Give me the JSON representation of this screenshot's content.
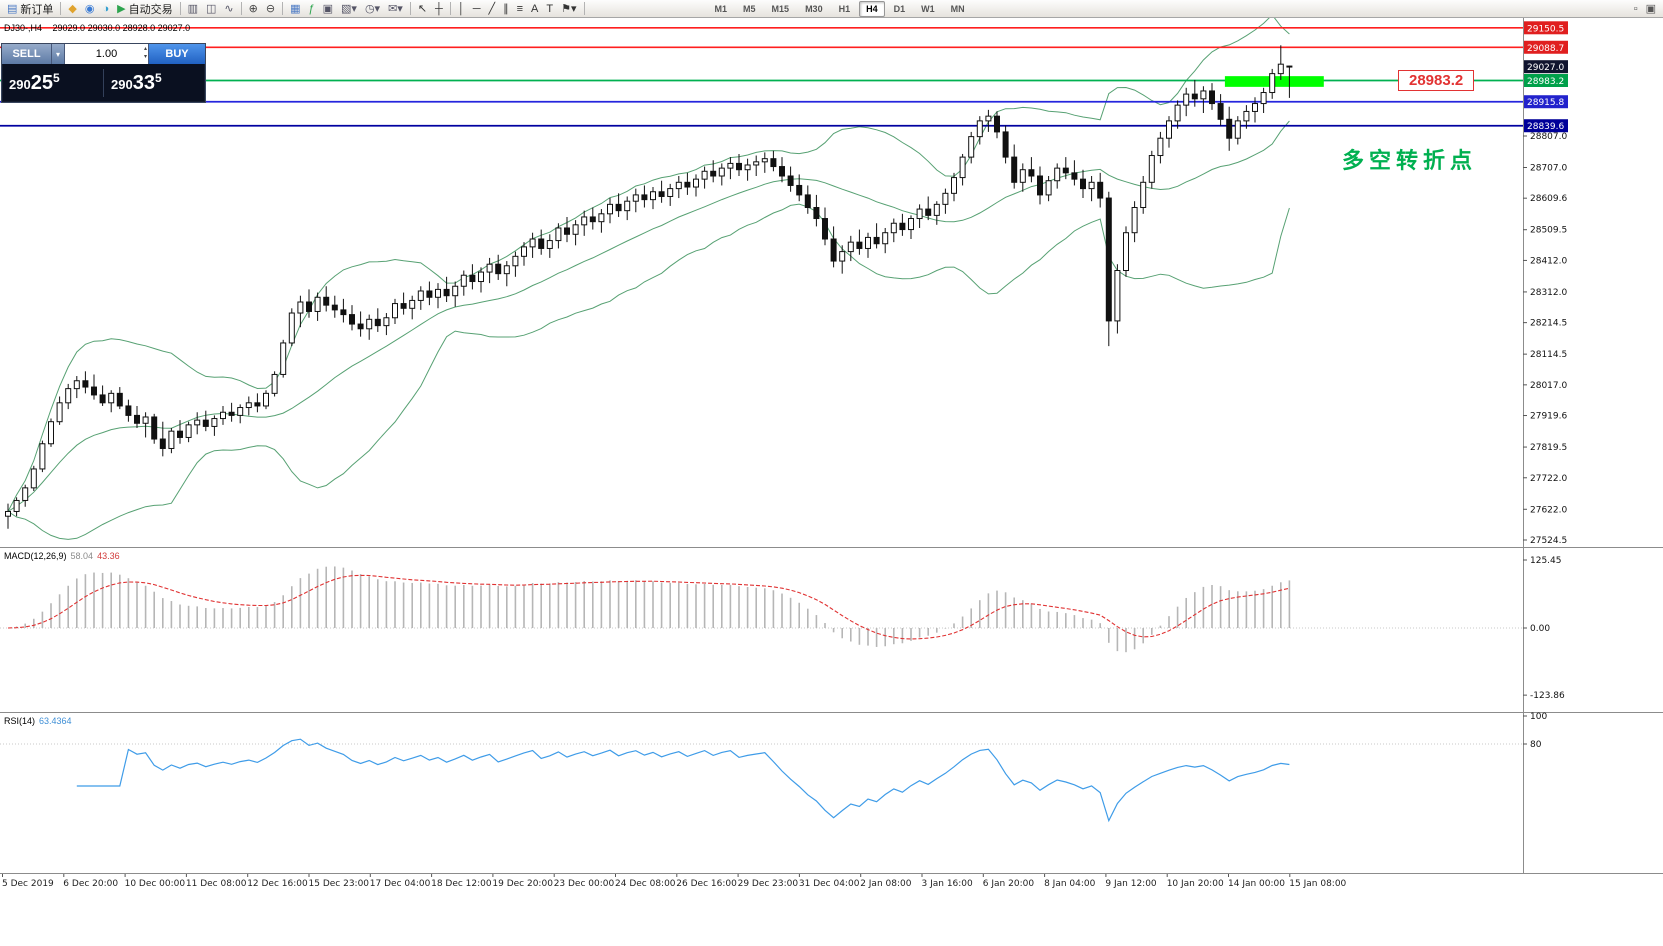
{
  "chart_header": {
    "symbol": "DJ30-,H4",
    "ohlc": "29029.0 29030.0 28928.0 29027.0"
  },
  "trade_panel": {
    "sell_label": "SELL",
    "buy_label": "BUY",
    "volume": "1.00",
    "sell_price": {
      "value": "29025.5",
      "prefix": "290",
      "big": "25",
      "sup": "5"
    },
    "buy_price": {
      "value": "29033.5",
      "prefix": "290",
      "big": "33",
      "sup": "5"
    }
  },
  "indicators": {
    "macd": {
      "name": "MACD(12,26,9)",
      "main": "58.04",
      "signal": "43.36"
    },
    "rsi": {
      "name": "RSI(14)",
      "value": "63.4364"
    }
  },
  "annotations": {
    "turning_point": "多空转折点",
    "price_label": "28983.2"
  },
  "toolbar": {
    "timeframes": [
      "M1",
      "M5",
      "M15",
      "M30",
      "H1",
      "H4",
      "D1",
      "W1",
      "MN"
    ],
    "active_timeframe": "H4",
    "items": [
      {
        "type": "button",
        "name": "new-order-button",
        "icon": "new-order-icon",
        "glyph": "▤",
        "color": "#4a79c4",
        "label": "新订单"
      },
      {
        "type": "sep"
      },
      {
        "type": "icon",
        "name": "market-watch-button",
        "icon": "gold-diamond-icon",
        "glyph": "◆",
        "color": "#e0a32e"
      },
      {
        "type": "icon",
        "name": "profile-button",
        "icon": "globe-icon",
        "glyph": "◉",
        "color": "#3a7bd5"
      },
      {
        "type": "icon",
        "name": "community-button",
        "icon": "circle-icon",
        "glyph": "◑",
        "color": "#35a0d0"
      },
      {
        "type": "button",
        "name": "auto-trading-button",
        "icon": "play-icon",
        "glyph": "▶",
        "color": "#2da44e",
        "label": "自动交易"
      },
      {
        "type": "sep"
      },
      {
        "type": "icon",
        "name": "bar-chart-button",
        "icon": "bar-chart-icon",
        "glyph": "▥",
        "color": "#556"
      },
      {
        "type": "icon",
        "name": "candlestick-chart-button",
        "icon": "candlestick-icon",
        "glyph": "◫",
        "color": "#556"
      },
      {
        "type": "icon",
        "name": "line-chart-button",
        "icon": "line-chart-icon",
        "glyph": "∿",
        "color": "#556"
      },
      {
        "type": "sep"
      },
      {
        "type": "icon",
        "name": "zoom-in-button",
        "icon": "zoom-in-icon",
        "glyph": "⊕",
        "color": "#444"
      },
      {
        "type": "icon",
        "name": "zoom-out-button",
        "icon": "zoom-out-icon",
        "glyph": "⊖",
        "color": "#444"
      },
      {
        "type": "sep"
      },
      {
        "type": "icon",
        "name": "tile-windows-button",
        "icon": "tile-windows-icon",
        "glyph": "▦",
        "color": "#4a79c4"
      },
      {
        "type": "icon",
        "name": "indicators-button",
        "icon": "function-icon",
        "glyph": "ƒ",
        "color": "#2da44e"
      },
      {
        "type": "icon",
        "name": "data-window-button",
        "icon": "data-window-icon",
        "glyph": "▣",
        "color": "#556"
      },
      {
        "type": "icon",
        "name": "new-chart-button",
        "icon": "new-chart-icon",
        "glyph": "▧▾",
        "color": "#556"
      },
      {
        "type": "icon",
        "name": "profiles-button",
        "icon": "clock-icon",
        "glyph": "◷▾",
        "color": "#556"
      },
      {
        "type": "icon",
        "name": "alerts-button",
        "icon": "envelope-icon",
        "glyph": "✉▾",
        "color": "#556"
      },
      {
        "type": "sep"
      },
      {
        "type": "icon",
        "name": "cursor-tool-button",
        "icon": "cursor-icon",
        "glyph": "↖",
        "color": "#333"
      },
      {
        "type": "icon",
        "name": "crosshair-tool-button",
        "icon": "crosshair-icon",
        "glyph": "┼",
        "color": "#333"
      },
      {
        "type": "sep"
      },
      {
        "type": "icon",
        "name": "vertical-line-tool",
        "icon": "vertical-line-icon",
        "glyph": "│",
        "color": "#333"
      },
      {
        "type": "icon",
        "name": "horizontal-line-tool",
        "icon": "horizontal-line-icon",
        "glyph": "─",
        "color": "#333"
      },
      {
        "type": "icon",
        "name": "trendline-tool",
        "icon": "trendline-icon",
        "glyph": "╱",
        "color": "#333"
      },
      {
        "type": "icon",
        "name": "channel-tool",
        "icon": "channel-icon",
        "glyph": "∥",
        "color": "#333"
      },
      {
        "type": "icon",
        "name": "fibonacci-tool",
        "icon": "fibonacci-icon",
        "glyph": "≡",
        "color": "#333"
      },
      {
        "type": "icon",
        "name": "text-tool",
        "icon": "text-icon",
        "glyph": "A",
        "color": "#333"
      },
      {
        "type": "icon",
        "name": "label-tool",
        "icon": "label-icon",
        "glyph": "T",
        "color": "#333"
      },
      {
        "type": "icon",
        "name": "arrows-tool",
        "icon": "flag-icon",
        "glyph": "⚑▾",
        "color": "#333"
      },
      {
        "type": "sep"
      },
      {
        "type": "tf",
        "name": "timeframe-switcher"
      },
      {
        "type": "spacer"
      },
      {
        "type": "icon",
        "name": "window-button-1",
        "icon": "window-icon",
        "glyph": "▫",
        "color": "#555"
      },
      {
        "type": "icon",
        "name": "window-button-2",
        "icon": "windows-icon",
        "glyph": "▣",
        "color": "#555"
      }
    ]
  },
  "chart_data": {
    "type": "candlestick",
    "symbol": "DJ30-",
    "timeframe": "H4",
    "bollinger_color": "#57a173",
    "levels": [
      {
        "label": "29150.5",
        "price": 29150.5,
        "line_color": "#ff1f1f",
        "line_width": 1.6,
        "badge": "#e01f1f"
      },
      {
        "label": "29088.7",
        "price": 29088.7,
        "line_color": "#ff1f1f",
        "line_width": 1.6,
        "badge": "#e01f1f"
      },
      {
        "label": "29027.0",
        "price": 29027.0,
        "line_color": null,
        "line_width": 0,
        "badge": "#10142e"
      },
      {
        "label": "28983.2",
        "price": 28983.2,
        "line_color": "#00b050",
        "line_width": 1.8,
        "badge": "#00a04a"
      },
      {
        "label": "28915.8",
        "price": 28915.8,
        "line_color": "#2525dd",
        "line_width": 1.8,
        "badge": "#2222cc"
      },
      {
        "label": "28839.6",
        "price": 28839.6,
        "line_color": "#0000a0",
        "line_width": 1.8,
        "badge": "#000099"
      }
    ],
    "axis_ticks": [
      "28807.0",
      "28707.0",
      "28609.6",
      "28509.5",
      "28412.0",
      "28312.0",
      "28214.5",
      "28114.5",
      "28017.0",
      "27919.6",
      "27819.5",
      "27722.0",
      "27622.0",
      "27524.5"
    ],
    "highlight_rect": {
      "from_bar": 141.5,
      "to_bar": 153,
      "price_top": 28997,
      "price_bottom": 28963,
      "color": "#00ff00"
    },
    "macd": {
      "scale": [
        "125.45",
        "0.00",
        "-123.86"
      ],
      "histogram_color": "#b6b6b6",
      "signal_color": "#e03232"
    },
    "rsi": {
      "scale": [
        "100",
        "80"
      ],
      "line_color": "#3f9ce8",
      "levels": [
        80
      ]
    },
    "time_labels": [
      "5 Dec 2019",
      "6 Dec 20:00",
      "10 Dec 00:00",
      "11 Dec 08:00",
      "12 Dec 16:00",
      "15 Dec 23:00",
      "17 Dec 04:00",
      "18 Dec 12:00",
      "19 Dec 20:00",
      "23 Dec 00:00",
      "24 Dec 08:00",
      "26 Dec 16:00",
      "29 Dec 23:00",
      "31 Dec 04:00",
      "2 Jan 08:00",
      "3 Jan 16:00",
      "6 Jan 20:00",
      "8 Jan 04:00",
      "9 Jan 12:00",
      "10 Jan 20:00",
      "14 Jan 00:00",
      "15 Jan 08:00"
    ],
    "candles": [
      [
        27600,
        27640,
        27560,
        27615
      ],
      [
        27615,
        27660,
        27600,
        27650
      ],
      [
        27650,
        27700,
        27630,
        27690
      ],
      [
        27690,
        27760,
        27680,
        27750
      ],
      [
        27750,
        27840,
        27740,
        27830
      ],
      [
        27830,
        27910,
        27820,
        27900
      ],
      [
        27900,
        27980,
        27890,
        27960
      ],
      [
        27960,
        28020,
        27940,
        28005
      ],
      [
        28005,
        28045,
        27975,
        28030
      ],
      [
        28030,
        28060,
        27990,
        28010
      ],
      [
        28010,
        28050,
        27970,
        27985
      ],
      [
        27985,
        28015,
        27950,
        27960
      ],
      [
        27960,
        28000,
        27930,
        27990
      ],
      [
        27990,
        28010,
        27940,
        27950
      ],
      [
        27950,
        27970,
        27900,
        27920
      ],
      [
        27920,
        27950,
        27880,
        27895
      ],
      [
        27895,
        27930,
        27850,
        27915
      ],
      [
        27915,
        27925,
        27830,
        27845
      ],
      [
        27845,
        27900,
        27790,
        27815
      ],
      [
        27815,
        27880,
        27800,
        27870
      ],
      [
        27870,
        27905,
        27830,
        27850
      ],
      [
        27850,
        27900,
        27835,
        27890
      ],
      [
        27890,
        27930,
        27860,
        27905
      ],
      [
        27905,
        27935,
        27870,
        27885
      ],
      [
        27885,
        27920,
        27855,
        27910
      ],
      [
        27910,
        27950,
        27890,
        27930
      ],
      [
        27930,
        27960,
        27900,
        27920
      ],
      [
        27920,
        27955,
        27895,
        27945
      ],
      [
        27945,
        27980,
        27920,
        27960
      ],
      [
        27960,
        27990,
        27930,
        27950
      ],
      [
        27950,
        28000,
        27940,
        27990
      ],
      [
        27990,
        28060,
        27980,
        28050
      ],
      [
        28050,
        28160,
        28040,
        28150
      ],
      [
        28150,
        28260,
        28140,
        28245
      ],
      [
        28245,
        28300,
        28200,
        28280
      ],
      [
        28280,
        28320,
        28230,
        28250
      ],
      [
        28250,
        28310,
        28220,
        28295
      ],
      [
        28295,
        28330,
        28250,
        28270
      ],
      [
        28270,
        28300,
        28230,
        28255
      ],
      [
        28255,
        28290,
        28215,
        28240
      ],
      [
        28240,
        28270,
        28190,
        28210
      ],
      [
        28210,
        28250,
        28170,
        28195
      ],
      [
        28195,
        28240,
        28160,
        28225
      ],
      [
        28225,
        28260,
        28185,
        28205
      ],
      [
        28205,
        28245,
        28175,
        28230
      ],
      [
        28230,
        28290,
        28210,
        28275
      ],
      [
        28275,
        28310,
        28240,
        28260
      ],
      [
        28260,
        28300,
        28225,
        28285
      ],
      [
        28285,
        28330,
        28255,
        28315
      ],
      [
        28315,
        28345,
        28270,
        28295
      ],
      [
        28295,
        28340,
        28260,
        28320
      ],
      [
        28320,
        28360,
        28280,
        28300
      ],
      [
        28300,
        28345,
        28265,
        28330
      ],
      [
        28330,
        28380,
        28300,
        28365
      ],
      [
        28365,
        28400,
        28320,
        28345
      ],
      [
        28345,
        28390,
        28310,
        28375
      ],
      [
        28375,
        28420,
        28340,
        28400
      ],
      [
        28400,
        28430,
        28350,
        28370
      ],
      [
        28370,
        28410,
        28330,
        28395
      ],
      [
        28395,
        28440,
        28360,
        28425
      ],
      [
        28425,
        28470,
        28395,
        28455
      ],
      [
        28455,
        28500,
        28420,
        28480
      ],
      [
        28480,
        28510,
        28430,
        28450
      ],
      [
        28450,
        28495,
        28420,
        28475
      ],
      [
        28475,
        28530,
        28450,
        28515
      ],
      [
        28515,
        28550,
        28470,
        28495
      ],
      [
        28495,
        28540,
        28460,
        28525
      ],
      [
        28525,
        28570,
        28490,
        28550
      ],
      [
        28550,
        28580,
        28510,
        28535
      ],
      [
        28535,
        28575,
        28500,
        28560
      ],
      [
        28560,
        28610,
        28530,
        28590
      ],
      [
        28590,
        28625,
        28550,
        28570
      ],
      [
        28570,
        28615,
        28540,
        28600
      ],
      [
        28600,
        28640,
        28565,
        28620
      ],
      [
        28620,
        28650,
        28580,
        28605
      ],
      [
        28605,
        28645,
        28575,
        28630
      ],
      [
        28630,
        28665,
        28595,
        28615
      ],
      [
        28615,
        28655,
        28585,
        28640
      ],
      [
        28640,
        28680,
        28610,
        28660
      ],
      [
        28660,
        28690,
        28620,
        28645
      ],
      [
        28645,
        28685,
        28615,
        28670
      ],
      [
        28670,
        28710,
        28640,
        28695
      ],
      [
        28695,
        28730,
        28660,
        28680
      ],
      [
        28680,
        28720,
        28650,
        28705
      ],
      [
        28705,
        28740,
        28670,
        28720
      ],
      [
        28720,
        28750,
        28680,
        28700
      ],
      [
        28700,
        28735,
        28665,
        28715
      ],
      [
        28715,
        28745,
        28680,
        28725
      ],
      [
        28725,
        28755,
        28690,
        28735
      ],
      [
        28735,
        28760,
        28695,
        28710
      ],
      [
        28710,
        28740,
        28660,
        28680
      ],
      [
        28680,
        28710,
        28630,
        28650
      ],
      [
        28650,
        28685,
        28600,
        28620
      ],
      [
        28620,
        28650,
        28560,
        28580
      ],
      [
        28580,
        28620,
        28520,
        28545
      ],
      [
        28545,
        28580,
        28460,
        28480
      ],
      [
        28480,
        28520,
        28390,
        28410
      ],
      [
        28410,
        28460,
        28370,
        28440
      ],
      [
        28440,
        28490,
        28410,
        28470
      ],
      [
        28470,
        28510,
        28430,
        28450
      ],
      [
        28450,
        28500,
        28420,
        28485
      ],
      [
        28485,
        28530,
        28450,
        28465
      ],
      [
        28465,
        28515,
        28435,
        28500
      ],
      [
        28500,
        28545,
        28470,
        28530
      ],
      [
        28530,
        28560,
        28490,
        28510
      ],
      [
        28510,
        28555,
        28480,
        28545
      ],
      [
        28545,
        28590,
        28515,
        28575
      ],
      [
        28575,
        28615,
        28540,
        28555
      ],
      [
        28555,
        28600,
        28525,
        28590
      ],
      [
        28590,
        28640,
        28560,
        28625
      ],
      [
        28625,
        28690,
        28600,
        28675
      ],
      [
        28675,
        28750,
        28650,
        28740
      ],
      [
        28740,
        28820,
        28720,
        28805
      ],
      [
        28805,
        28870,
        28780,
        28855
      ],
      [
        28855,
        28890,
        28820,
        28870
      ],
      [
        28870,
        28885,
        28800,
        28820
      ],
      [
        28820,
        28840,
        28720,
        28740
      ],
      [
        28740,
        28780,
        28640,
        28660
      ],
      [
        28660,
        28720,
        28630,
        28700
      ],
      [
        28700,
        28740,
        28660,
        28680
      ],
      [
        28680,
        28710,
        28590,
        28620
      ],
      [
        28620,
        28680,
        28600,
        28665
      ],
      [
        28665,
        28720,
        28640,
        28705
      ],
      [
        28705,
        28740,
        28670,
        28690
      ],
      [
        28690,
        28730,
        28650,
        28670
      ],
      [
        28670,
        28700,
        28610,
        28640
      ],
      [
        28640,
        28680,
        28600,
        28660
      ],
      [
        28660,
        28690,
        28580,
        28610
      ],
      [
        28610,
        28630,
        28140,
        28220
      ],
      [
        28220,
        28400,
        28180,
        28380
      ],
      [
        28380,
        28520,
        28360,
        28500
      ],
      [
        28500,
        28600,
        28470,
        28580
      ],
      [
        28580,
        28680,
        28560,
        28660
      ],
      [
        28660,
        28760,
        28640,
        28745
      ],
      [
        28745,
        28820,
        28720,
        28800
      ],
      [
        28800,
        28870,
        28770,
        28855
      ],
      [
        28855,
        28920,
        28830,
        28905
      ],
      [
        28905,
        28960,
        28870,
        28940
      ],
      [
        28940,
        28985,
        28900,
        28925
      ],
      [
        28925,
        28965,
        28880,
        28950
      ],
      [
        28950,
        28975,
        28890,
        28910
      ],
      [
        28910,
        28940,
        28840,
        28860
      ],
      [
        28860,
        28900,
        28760,
        28800
      ],
      [
        28800,
        28870,
        28780,
        28855
      ],
      [
        28855,
        28905,
        28830,
        28885
      ],
      [
        28885,
        28930,
        28850,
        28910
      ],
      [
        28910,
        28960,
        28880,
        28945
      ],
      [
        28945,
        29020,
        28925,
        29005
      ],
      [
        29005,
        29095,
        28985,
        29035
      ],
      [
        29029,
        29030,
        28928,
        29027
      ]
    ]
  }
}
